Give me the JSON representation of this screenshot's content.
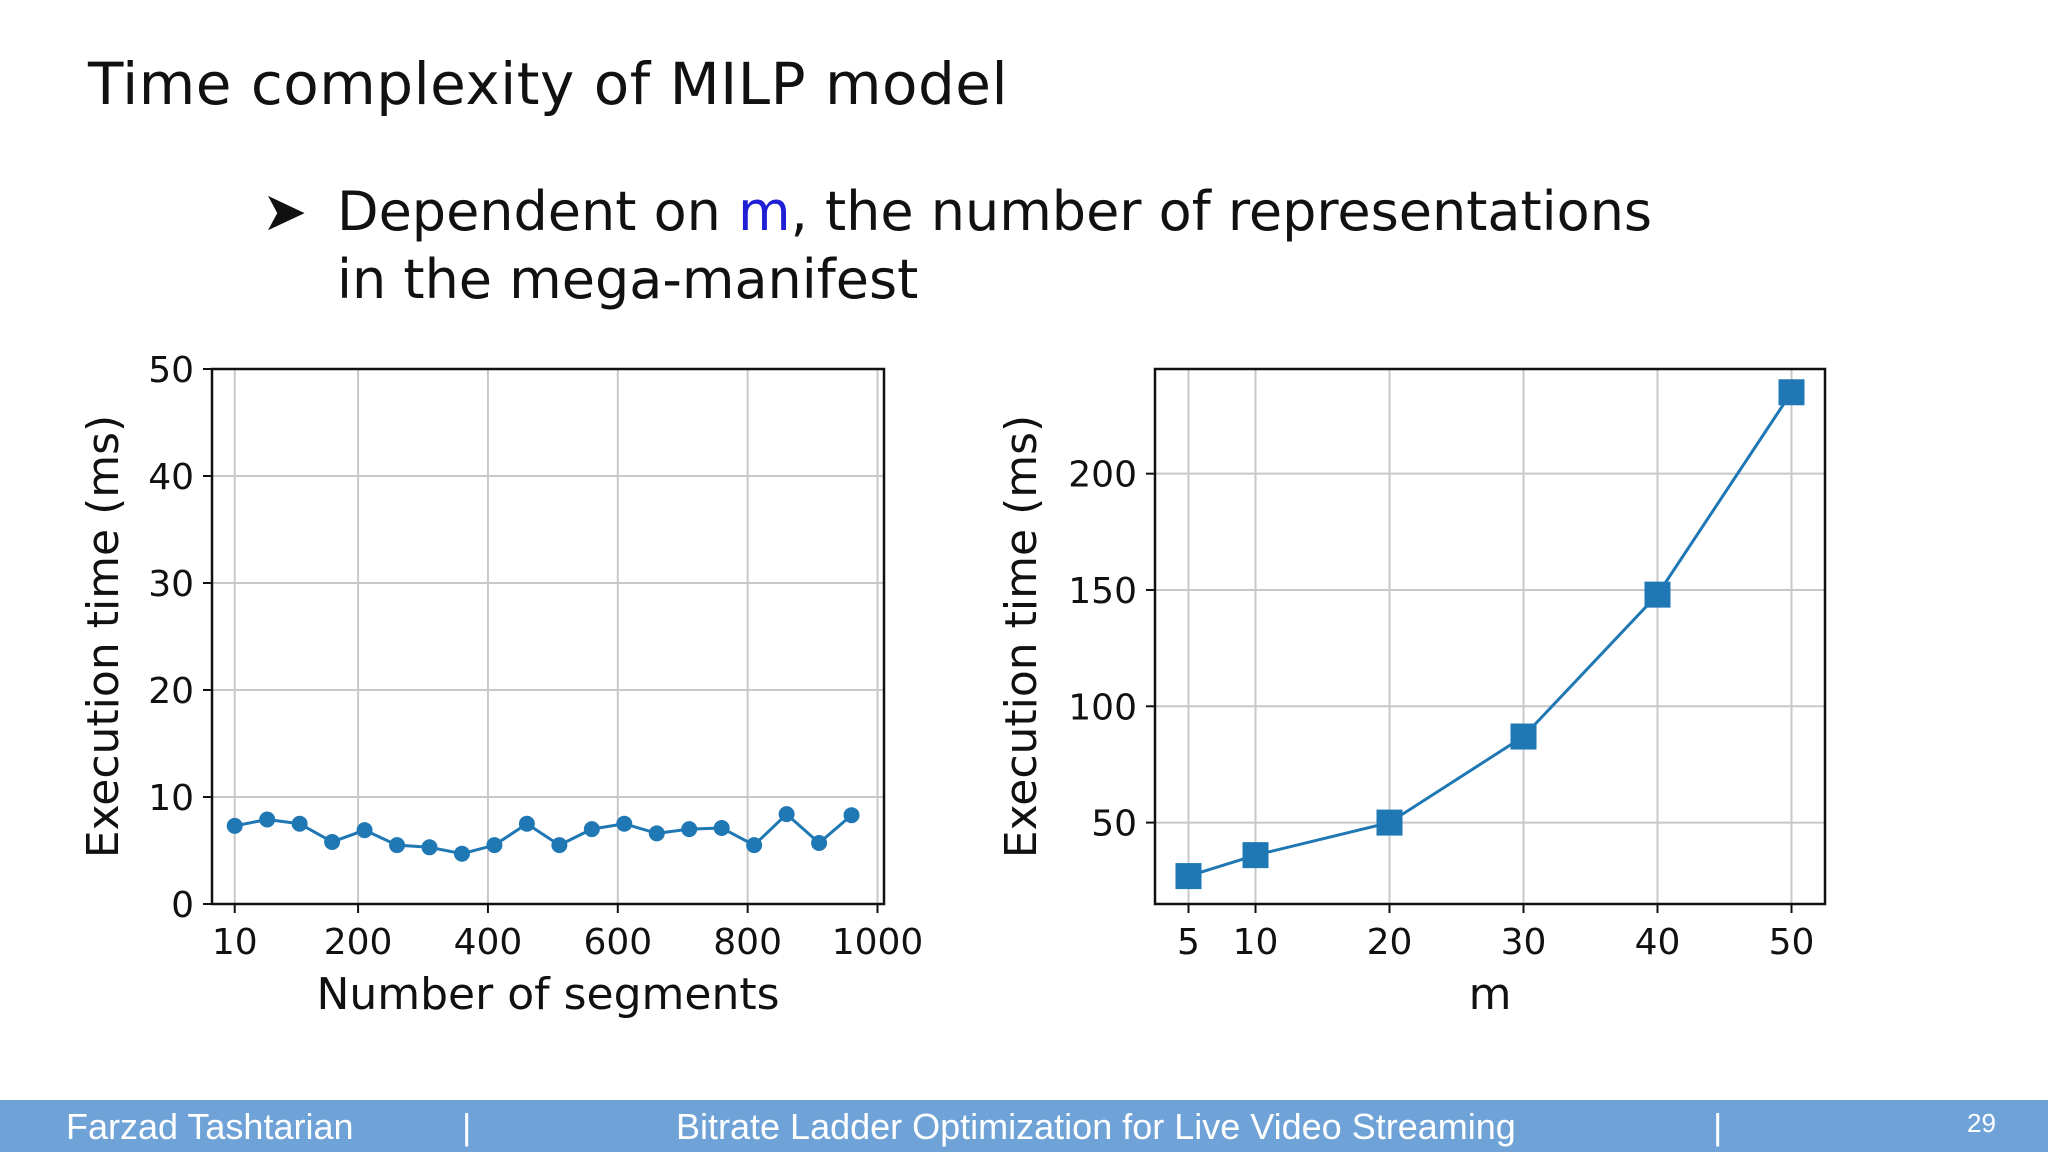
{
  "slide": {
    "title": "Time complexity of MILP model",
    "bullet": {
      "arrow": "➤",
      "before": "Dependent on ",
      "highlight": "m",
      "after": ",  the number of representations",
      "line2": "in the mega-manifest"
    }
  },
  "colors": {
    "series": "#1f77b4",
    "highlight": "#1f1fd6",
    "footer_bg": "#6fa3d8"
  },
  "chart_data": [
    {
      "type": "line",
      "marker": "circle",
      "xlabel": "Number of segments",
      "ylabel": "Execution time (ms)",
      "xlim": [
        -25,
        1010
      ],
      "ylim": [
        0,
        50
      ],
      "xticks": [
        10,
        200,
        400,
        600,
        800,
        1000
      ],
      "yticks": [
        0,
        10,
        20,
        30,
        40,
        50
      ],
      "grid": true,
      "x": [
        10,
        60,
        110,
        160,
        210,
        260,
        310,
        360,
        410,
        460,
        510,
        560,
        610,
        660,
        710,
        760,
        810,
        860,
        910,
        960
      ],
      "y": [
        7.3,
        7.9,
        7.5,
        5.8,
        6.9,
        5.5,
        5.3,
        4.7,
        5.5,
        7.5,
        5.5,
        7.0,
        7.5,
        6.6,
        7.0,
        7.1,
        5.5,
        8.4,
        5.7,
        8.3
      ]
    },
    {
      "type": "line",
      "marker": "square",
      "xlabel": "m",
      "ylabel": "Execution time (ms)",
      "xlim": [
        2.5,
        52.5
      ],
      "ylim": [
        15,
        245
      ],
      "xticks": [
        5,
        10,
        20,
        30,
        40,
        50
      ],
      "yticks": [
        50,
        100,
        150,
        200
      ],
      "grid": true,
      "x": [
        5,
        10,
        20,
        30,
        40,
        50
      ],
      "y": [
        27,
        36,
        50,
        87,
        148,
        235
      ]
    }
  ],
  "footer": {
    "author": "Farzad Tashtarian",
    "sep1": "|",
    "talk_title": "Bitrate Ladder Optimization for Live Video Streaming",
    "sep2": "|",
    "page_number": "29"
  }
}
